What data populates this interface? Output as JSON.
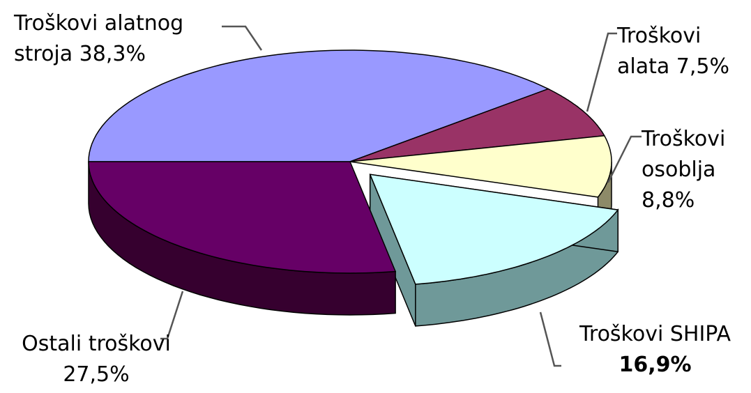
{
  "chart_data": {
    "type": "pie",
    "style": "3d-exploded",
    "slices": [
      {
        "label": "Troškovi alatnog stroja",
        "value": 38.3,
        "color": "#9999ff",
        "color_side": "#5a5aa8"
      },
      {
        "label": "Troškovi alata",
        "value": 7.5,
        "color": "#993366",
        "color_side": "#5e1f3f"
      },
      {
        "label": "Troškovi osoblja",
        "value": 8.8,
        "color": "#ffffcc",
        "color_side": "#8d8a68"
      },
      {
        "label": "Troškovi SHIPA",
        "value": 16.9,
        "color": "#ccffff",
        "color_side": "#6f9999",
        "exploded": true
      },
      {
        "label": "Ostali troškovi",
        "value": 27.5,
        "color": "#660066",
        "color_side": "#36002f"
      }
    ]
  },
  "labels": {
    "stroj_1": "Troškovi alatnog",
    "stroj_2": "stroja 38,3%",
    "alat_1": "Troškovi",
    "alat_2": "alata 7,5%",
    "osoblje_1": "Troškovi",
    "osoblje_2": "osoblja",
    "osoblje_3": "8,8%",
    "shipa_1": "Troškovi SHIPA",
    "shipa_2": "16,9%",
    "ostali_1": "Ostali troškovi",
    "ostali_2": "27,5%"
  }
}
